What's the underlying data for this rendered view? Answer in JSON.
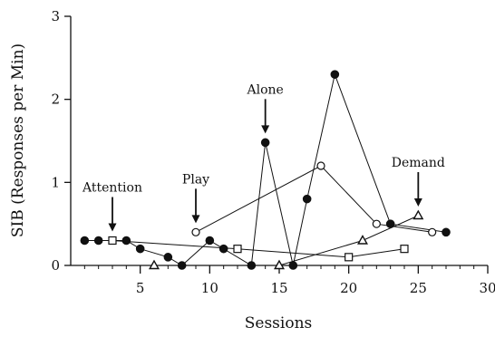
{
  "chart_data": {
    "type": "line",
    "xlabel": "Sessions",
    "ylabel": "SIB (Responses per Min)",
    "xlim": [
      0,
      30
    ],
    "ylim": [
      0,
      3
    ],
    "xticks": [
      "5",
      "10",
      "15",
      "20",
      "25",
      "30"
    ],
    "yticks": [
      "0",
      "1",
      "2",
      "3"
    ],
    "grid": false,
    "series": [
      {
        "condition": "Alone",
        "marker": "filled-circle",
        "points": [
          [
            1,
            0.3
          ],
          [
            2,
            0.3
          ],
          [
            4,
            0.3
          ],
          [
            5,
            0.2
          ],
          [
            7,
            0.1
          ],
          [
            8,
            0.0
          ],
          [
            10,
            0.3
          ],
          [
            11,
            0.2
          ],
          [
            13,
            0.0
          ],
          [
            14,
            1.48
          ],
          [
            16,
            0.0
          ],
          [
            17,
            0.8
          ],
          [
            19,
            2.3
          ],
          [
            23,
            0.5
          ],
          [
            27,
            0.4
          ]
        ]
      },
      {
        "condition": "Play",
        "marker": "open-circle",
        "points": [
          [
            9,
            0.4
          ],
          [
            18,
            1.2
          ],
          [
            22,
            0.5
          ],
          [
            26,
            0.4
          ]
        ]
      },
      {
        "condition": "Attention",
        "marker": "open-square",
        "points": [
          [
            3,
            0.3
          ],
          [
            12,
            0.2
          ],
          [
            20,
            0.1
          ],
          [
            24,
            0.2
          ]
        ]
      },
      {
        "condition": "Demand",
        "marker": "open-triangle",
        "points": [
          [
            6,
            0.0
          ],
          [
            15,
            0.0
          ],
          [
            21,
            0.3
          ],
          [
            25,
            0.6
          ]
        ]
      }
    ],
    "annotations": [
      {
        "text": "Attention",
        "x": 3,
        "y": 0.3,
        "key": "attention"
      },
      {
        "text": "Play",
        "x": 9,
        "y": 0.4,
        "key": "play"
      },
      {
        "text": "Alone",
        "x": 14,
        "y": 1.48,
        "key": "alone"
      },
      {
        "text": "Demand",
        "x": 25,
        "y": 0.6,
        "key": "demand"
      }
    ]
  }
}
